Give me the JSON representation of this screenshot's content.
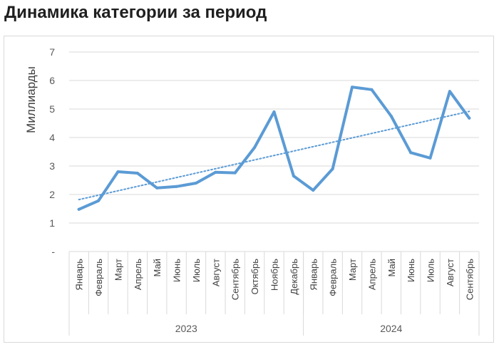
{
  "page": {
    "title": "Динамика категории за период"
  },
  "chart_data": {
    "type": "line",
    "title": "",
    "ylabel": "Миллиарды",
    "xlabel": "",
    "ylim": [
      0,
      7
    ],
    "y_ticks": [
      "-",
      "1",
      "2",
      "3",
      "4",
      "5",
      "6",
      "7"
    ],
    "grid": true,
    "groups": [
      {
        "label": "2023",
        "count": 12
      },
      {
        "label": "2024",
        "count": 9
      }
    ],
    "categories": [
      "Январь",
      "Февраль",
      "Март",
      "Апрель",
      "Май",
      "Июнь",
      "Июль",
      "Август",
      "Сентябрь",
      "Октябрь",
      "Ноябрь",
      "Декабрь",
      "Январь",
      "Февраль",
      "Март",
      "Апрель",
      "Май",
      "Июнь",
      "Июль",
      "Август",
      "Сентябрь"
    ],
    "series": [
      {
        "values": [
          1.48,
          1.78,
          2.8,
          2.75,
          2.23,
          2.28,
          2.4,
          2.78,
          2.76,
          3.65,
          4.9,
          2.65,
          2.15,
          2.9,
          5.77,
          5.68,
          4.75,
          3.47,
          3.28,
          5.62,
          4.68
        ],
        "color": "#5b9bd5"
      }
    ],
    "trendline": {
      "type": "linear",
      "style": "dotted",
      "color": "#5b9bd5"
    }
  }
}
